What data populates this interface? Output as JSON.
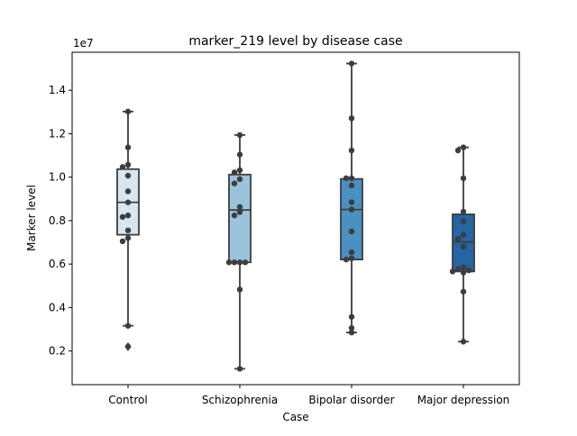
{
  "chart_data": {
    "type": "box",
    "title": "marker_219 level by disease case",
    "xlabel": "Case",
    "ylabel": "Marker level",
    "y_multiplier_label": "1e7",
    "ylim": [
      0.045,
      1.575
    ],
    "y_ticks": [
      0.2,
      0.4,
      0.6,
      0.8,
      1.0,
      1.2,
      1.4
    ],
    "y_tick_labels": [
      "0.2",
      "0.4",
      "0.6",
      "0.8",
      "1.0",
      "1.2",
      "1.4"
    ],
    "categories": [
      "Control",
      "Schizophrenia",
      "Bipolar disorder",
      "Major depression"
    ],
    "colors": [
      "#d8e6f2",
      "#9bc3dc",
      "#4a90c0",
      "#2465a5"
    ],
    "groups": [
      {
        "category": "Control",
        "q1": 0.735,
        "median": 0.884,
        "q3": 1.037,
        "whisker_low": 0.316,
        "whisker_high": 1.302,
        "outliers": [
          0.22
        ],
        "points": [
          1.302,
          1.137,
          1.057,
          1.047,
          1.007,
          0.935,
          0.884,
          0.824,
          0.817,
          0.755,
          0.72,
          0.705,
          0.316,
          0.22
        ]
      },
      {
        "category": "Schizophrenia",
        "q1": 0.608,
        "median": 0.849,
        "q3": 1.012,
        "whisker_low": 0.118,
        "whisker_high": 1.194,
        "outliers": [],
        "points": [
          1.194,
          1.104,
          1.032,
          1.022,
          0.991,
          0.971,
          0.863,
          0.839,
          0.824,
          0.608,
          0.608,
          0.608,
          0.608,
          0.483,
          0.118
        ]
      },
      {
        "category": "Bipolar disorder",
        "q1": 0.621,
        "median": 0.851,
        "q3": 0.992,
        "whisker_low": 0.285,
        "whisker_high": 1.523,
        "outliers": [],
        "points": [
          1.523,
          1.271,
          1.123,
          0.995,
          0.995,
          0.962,
          0.885,
          0.851,
          0.75,
          0.654,
          0.626,
          0.621,
          0.357,
          0.306,
          0.285
        ]
      },
      {
        "category": "Major depression",
        "q1": 0.566,
        "median": 0.702,
        "q3": 0.829,
        "whisker_low": 0.243,
        "whisker_high": 1.137,
        "outliers": [],
        "points": [
          1.137,
          1.123,
          0.995,
          0.841,
          0.797,
          0.735,
          0.716,
          0.68,
          0.585,
          0.576,
          0.571,
          0.566,
          0.561,
          0.473,
          0.243
        ]
      }
    ]
  }
}
